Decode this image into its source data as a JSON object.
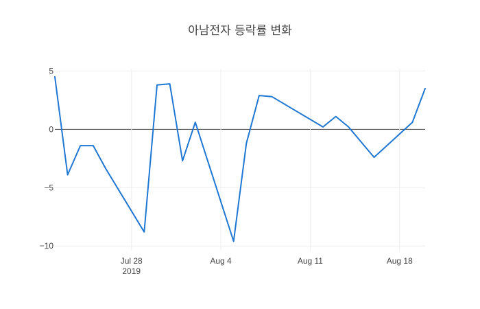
{
  "chart_data": {
    "type": "line",
    "title": "아남전자 등락률 변화",
    "xlabel": "",
    "ylabel": "",
    "grid": true,
    "xlim": [
      "2019-07-22",
      "2019-08-20"
    ],
    "ylim": [
      -10.4,
      5.2
    ],
    "x_ticks": [
      {
        "date": "2019-07-28",
        "label": "Jul 28",
        "sublabel": "2019"
      },
      {
        "date": "2019-08-04",
        "label": "Aug 4",
        "sublabel": ""
      },
      {
        "date": "2019-08-11",
        "label": "Aug 11",
        "sublabel": ""
      },
      {
        "date": "2019-08-18",
        "label": "Aug 18",
        "sublabel": ""
      }
    ],
    "y_ticks": [
      {
        "value": 5,
        "label": "5"
      },
      {
        "value": 0,
        "label": "0"
      },
      {
        "value": -5,
        "label": "−5"
      },
      {
        "value": -10,
        "label": "−10"
      }
    ],
    "series": [
      {
        "color": "#1f77d4",
        "x": [
          "2019-07-22",
          "2019-07-23",
          "2019-07-24",
          "2019-07-25",
          "2019-07-26",
          "2019-07-29",
          "2019-07-30",
          "2019-07-31",
          "2019-08-01",
          "2019-08-02",
          "2019-08-05",
          "2019-08-06",
          "2019-08-07",
          "2019-08-08",
          "2019-08-12",
          "2019-08-13",
          "2019-08-14",
          "2019-08-16",
          "2019-08-19",
          "2019-08-20"
        ],
        "y": [
          4.5,
          -3.9,
          -1.4,
          -1.4,
          -3.4,
          -8.8,
          3.8,
          3.9,
          -2.7,
          0.6,
          -9.6,
          -1.2,
          2.9,
          2.8,
          0.2,
          1.1,
          0.2,
          -2.4,
          0.6,
          3.5
        ]
      }
    ]
  }
}
